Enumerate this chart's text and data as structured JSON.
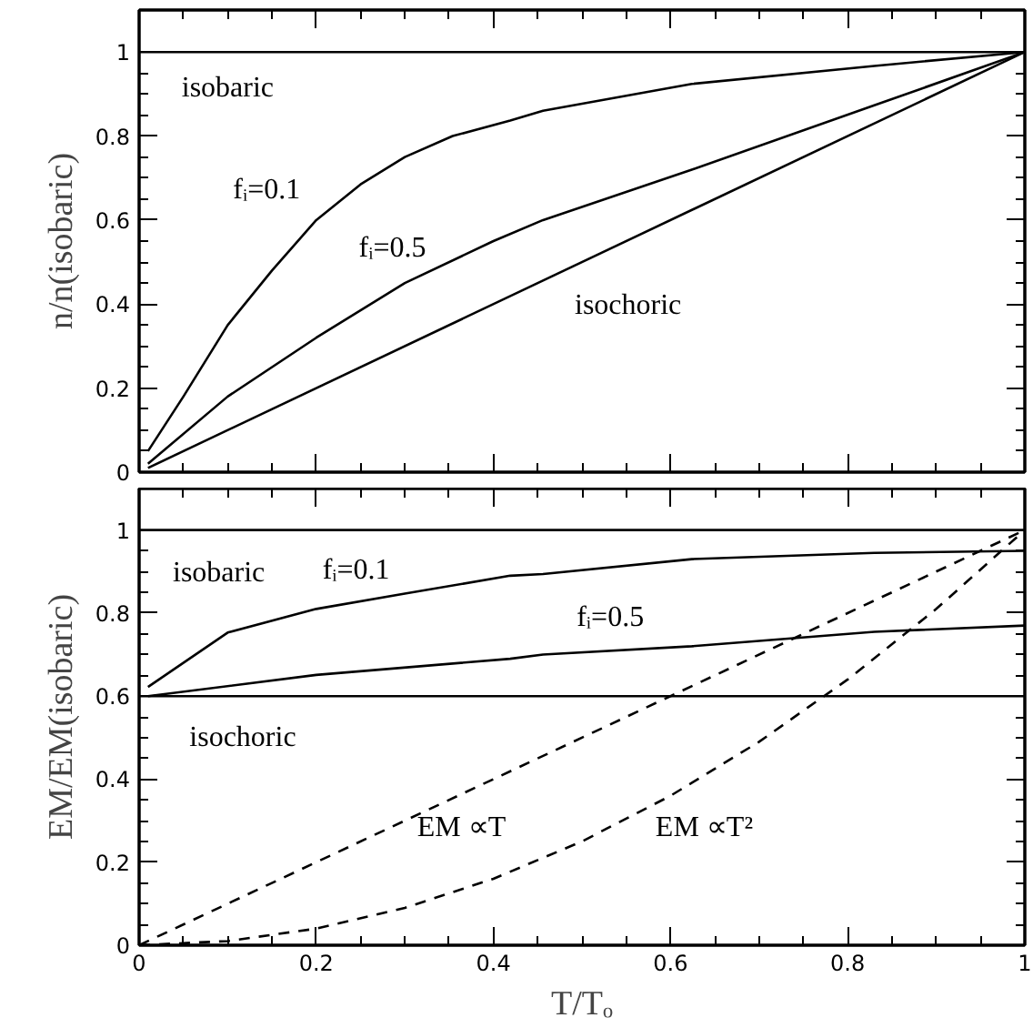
{
  "chart_data": [
    {
      "type": "line",
      "ylabel": "n/n(isobaric)",
      "xlim": [
        0,
        1
      ],
      "ylim": [
        0,
        1.1
      ],
      "xticks": [
        0,
        0.2,
        0.4,
        0.6,
        0.8,
        1
      ],
      "yticks": [
        0,
        0.2,
        0.4,
        0.6,
        0.8,
        1
      ],
      "tick_labels": "y",
      "line_style": "solid",
      "series": [
        {
          "color": "#000000",
          "x": [
            0,
            1
          ],
          "values": [
            1,
            1
          ]
        },
        {
          "color": "#000000",
          "x": [
            0.01,
            0.05,
            0.1,
            0.15,
            0.2,
            0.25,
            0.3,
            0.354,
            0.419,
            0.456,
            0.624,
            0.83,
            1
          ],
          "values": [
            0.05,
            0.18,
            0.35,
            0.48,
            0.6,
            0.685,
            0.75,
            0.8,
            0.837,
            0.86,
            0.924,
            0.967,
            1
          ]
        },
        {
          "color": "#000000",
          "x": [
            0.01,
            0.1,
            0.2,
            0.3,
            0.4,
            0.456,
            0.624,
            0.83,
            1
          ],
          "values": [
            0.02,
            0.18,
            0.32,
            0.45,
            0.55,
            0.6,
            0.72,
            0.873,
            1
          ]
        },
        {
          "color": "#000000",
          "x": [
            0.01,
            1
          ],
          "values": [
            0.01,
            1
          ]
        }
      ],
      "annotations": [
        "isobaric",
        "fᵢ=0.1",
        "fᵢ=0.5",
        "isochoric"
      ]
    },
    {
      "type": "line",
      "xlabel": "T/Tₒ",
      "ylabel": "EM/EM(isobaric)",
      "xlim": [
        0,
        1
      ],
      "ylim": [
        0,
        1.1
      ],
      "xticks": [
        0,
        0.2,
        0.4,
        0.6,
        0.8,
        1
      ],
      "yticks": [
        0,
        0.2,
        0.4,
        0.6,
        0.8,
        1
      ],
      "line_style": "solid",
      "series": [
        {
          "color": "#000000",
          "x": [
            0,
            1
          ],
          "values": [
            1,
            1
          ]
        },
        {
          "color": "#000000",
          "x": [
            0.01,
            0.1,
            0.2,
            0.3,
            0.419,
            0.456,
            0.624,
            0.83,
            1
          ],
          "values": [
            0.622,
            0.753,
            0.81,
            0.847,
            0.89,
            0.894,
            0.93,
            0.945,
            0.95
          ]
        },
        {
          "color": "#000000",
          "x": [
            0.01,
            0.2,
            0.419,
            0.456,
            0.624,
            0.83,
            1
          ],
          "values": [
            0.6,
            0.651,
            0.69,
            0.7,
            0.72,
            0.755,
            0.77
          ]
        },
        {
          "color": "#000000",
          "x": [
            0,
            1
          ],
          "values": [
            0.6,
            0.6
          ]
        },
        {
          "color": "#000000",
          "line_style": "dashed",
          "x": [
            0,
            1
          ],
          "values": [
            0,
            1
          ]
        },
        {
          "color": "#000000",
          "line_style": "dashed",
          "x": [
            0,
            0.1,
            0.2,
            0.3,
            0.4,
            0.5,
            0.6,
            0.7,
            0.8,
            0.9,
            1
          ],
          "values": [
            0,
            0.01,
            0.04,
            0.09,
            0.16,
            0.25,
            0.36,
            0.49,
            0.64,
            0.81,
            1
          ]
        }
      ],
      "annotations": [
        "isobaric",
        "fᵢ=0.1",
        "fᵢ=0.5",
        "isochoric",
        "EM ∝T",
        "EM ∝T²"
      ]
    }
  ]
}
